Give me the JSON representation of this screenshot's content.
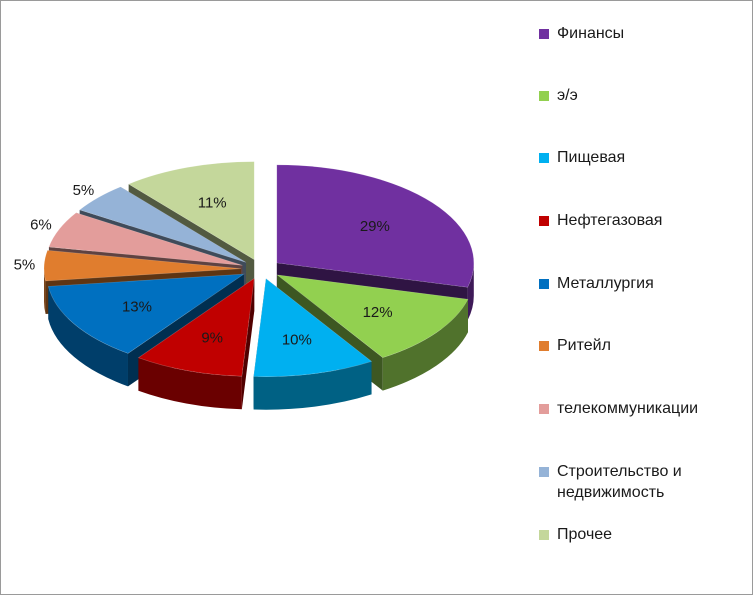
{
  "chart_data": {
    "type": "pie",
    "categories": [
      "Финансы",
      "э/э",
      "Пищевая",
      "Нефтегазовая",
      "Металлургия",
      "Ритейл",
      "телекоммуникации",
      "Строительство и недвижимость",
      "Прочее"
    ],
    "values": [
      29,
      12,
      10,
      9,
      13,
      5,
      6,
      5,
      11
    ],
    "data_labels": [
      "29%",
      "12%",
      "10%",
      "9%",
      "13%",
      "5%",
      "6%",
      "5%",
      "11%"
    ],
    "colors": [
      "#7030A0",
      "#92D050",
      "#00B0F0",
      "#C00000",
      "#0070C0",
      "#E07D2E",
      "#E39D9B",
      "#95B3D7",
      "#C4D79B"
    ],
    "exploded": true,
    "style": "3d",
    "legend_position": "right",
    "title": ""
  }
}
